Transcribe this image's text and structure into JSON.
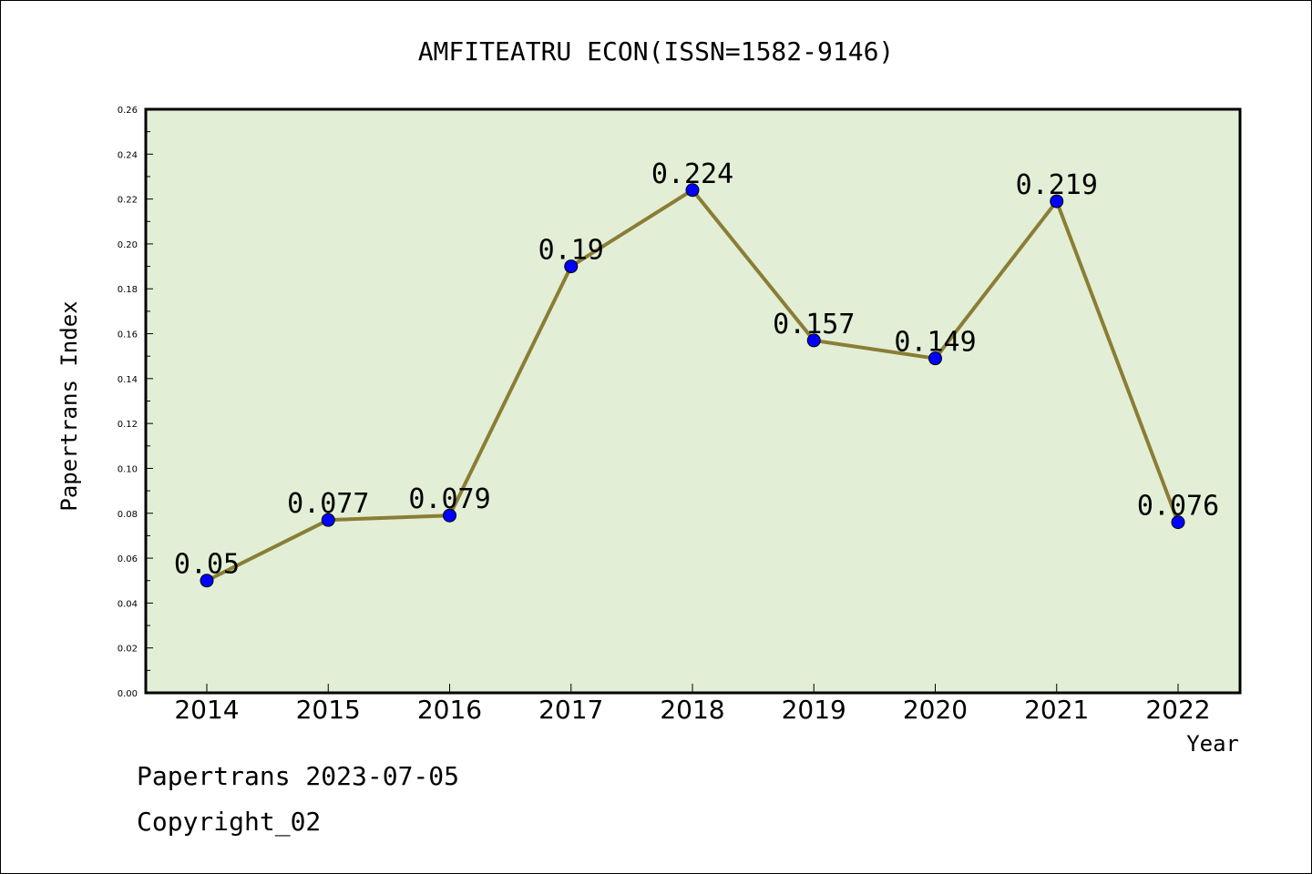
{
  "chart_data": {
    "type": "line",
    "title": "AMFITEATRU ECON(ISSN=1582-9146)",
    "xlabel": "Year",
    "ylabel": "Papertrans Index",
    "categories": [
      "2014",
      "2015",
      "2016",
      "2017",
      "2018",
      "2019",
      "2020",
      "2021",
      "2022"
    ],
    "values": [
      0.05,
      0.077,
      0.079,
      0.19,
      0.224,
      0.157,
      0.149,
      0.219,
      0.076
    ],
    "value_labels": [
      "0.05",
      "0.077",
      "0.079",
      "0.19",
      "0.224",
      "0.157",
      "0.149",
      "0.219",
      "0.076"
    ],
    "ylim": [
      0,
      0.26
    ],
    "yticks": [
      "0.00",
      "0.02",
      "0.04",
      "0.06",
      "0.08",
      "0.10",
      "0.12",
      "0.14",
      "0.16",
      "0.18",
      "0.20",
      "0.22",
      "0.24",
      "0.26"
    ],
    "grid": false,
    "colors": {
      "plot_background": "#e2efd6",
      "line": "#8b7d35",
      "marker": "#0000ff"
    }
  },
  "footer": {
    "date_line": "Papertrans 2023-07-05",
    "copyright": "Copyright_02"
  }
}
